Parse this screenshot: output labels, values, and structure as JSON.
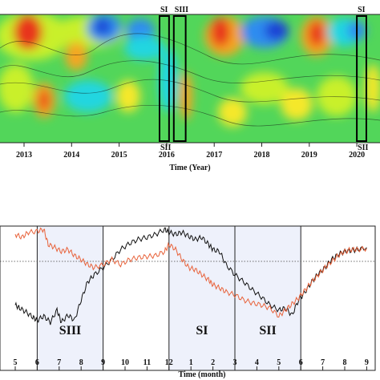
{
  "chart_data": [
    {
      "type": "heatmap",
      "xlabel": "Time (Year)",
      "x_ticks": [
        "2013",
        "2014",
        "2015",
        "2016",
        "2017",
        "2018",
        "2019",
        "2020"
      ],
      "colorscale": [
        "#1a3fd4",
        "#2d8cf0",
        "#20d6e0",
        "#52d65a",
        "#c9f02a",
        "#f5e82a",
        "#f5a623",
        "#e8361b"
      ],
      "period_boxes": [
        {
          "label": "SI",
          "label_bottom": "SII",
          "start_year": 2015.85,
          "end_year": 2016.05
        },
        {
          "label": "SIII",
          "start_year": 2016.15,
          "end_year": 2016.4
        },
        {
          "label": "SI",
          "label_bottom": "SII",
          "start_year": 2020.0,
          "end_year": 2020.2
        }
      ]
    },
    {
      "type": "line",
      "xlabel": "Time (month)",
      "x_ticks": [
        "5",
        "6",
        "7",
        "8",
        "9",
        "10",
        "11",
        "12",
        "1",
        "2",
        "3",
        "4",
        "5",
        "6",
        "7",
        "8",
        "9"
      ],
      "reference_line": "dashed",
      "periods": [
        {
          "label": "SI",
          "start_tick": "12",
          "end_tick": "3"
        },
        {
          "label": "SII",
          "start_tick": "3",
          "end_tick": "6"
        },
        {
          "label": "SIII",
          "start_tick": "6",
          "end_tick": "9"
        }
      ],
      "series": [
        {
          "color": "#111111",
          "x": [
            0,
            0.2,
            0.5,
            0.8,
            1.0,
            1.3,
            1.6,
            1.9,
            2.1,
            2.4,
            2.7,
            3.0,
            3.3,
            3.6,
            4.0,
            4.4,
            4.8,
            5.2,
            5.6,
            6.0,
            6.4,
            6.8,
            7.0,
            7.3,
            7.6,
            7.9,
            8.2,
            8.5,
            8.8,
            9.0,
            9.3,
            9.6,
            10.0,
            10.4,
            10.8,
            11.2,
            11.6,
            12.0,
            12.3,
            12.6,
            12.9,
            13.2,
            13.5,
            13.8,
            14.1,
            14.4,
            14.7,
            15.0,
            15.3,
            15.6,
            16.0
          ],
          "y": [
            0.25,
            0.22,
            0.18,
            0.13,
            0.1,
            0.14,
            0.08,
            0.2,
            0.08,
            0.15,
            0.1,
            0.3,
            0.48,
            0.55,
            0.62,
            0.7,
            0.8,
            0.86,
            0.9,
            0.92,
            0.95,
            1.0,
            0.97,
            0.95,
            0.97,
            0.93,
            0.9,
            0.92,
            0.85,
            0.8,
            0.78,
            0.65,
            0.55,
            0.48,
            0.4,
            0.33,
            0.25,
            0.2,
            0.22,
            0.15,
            0.3,
            0.38,
            0.48,
            0.56,
            0.62,
            0.7,
            0.75,
            0.78,
            0.79,
            0.8,
            0.82
          ]
        },
        {
          "color": "#e8623a",
          "x": [
            0,
            0.3,
            0.6,
            1.0,
            1.3,
            1.5,
            1.8,
            2.1,
            2.4,
            2.7,
            3.0,
            3.3,
            3.6,
            4.0,
            4.4,
            4.8,
            5.2,
            5.6,
            6.0,
            6.4,
            6.8,
            7.0,
            7.3,
            7.6,
            7.9,
            8.2,
            8.5,
            8.8,
            9.0,
            9.3,
            9.6,
            10.0,
            10.4,
            10.8,
            11.2,
            11.6,
            12.0,
            12.3,
            12.6,
            12.9,
            13.2,
            13.5,
            13.8,
            14.1,
            14.4,
            14.7,
            15.0,
            15.3,
            15.6,
            16.0
          ],
          "y": [
            0.95,
            0.92,
            0.97,
            0.98,
            1.0,
            0.85,
            0.82,
            0.78,
            0.8,
            0.74,
            0.7,
            0.65,
            0.62,
            0.65,
            0.7,
            0.65,
            0.7,
            0.72,
            0.73,
            0.74,
            0.78,
            0.85,
            0.8,
            0.7,
            0.62,
            0.6,
            0.55,
            0.5,
            0.45,
            0.42,
            0.38,
            0.35,
            0.3,
            0.27,
            0.25,
            0.22,
            0.14,
            0.2,
            0.26,
            0.32,
            0.4,
            0.48,
            0.55,
            0.62,
            0.68,
            0.74,
            0.78,
            0.8,
            0.8,
            0.81
          ]
        }
      ]
    }
  ]
}
